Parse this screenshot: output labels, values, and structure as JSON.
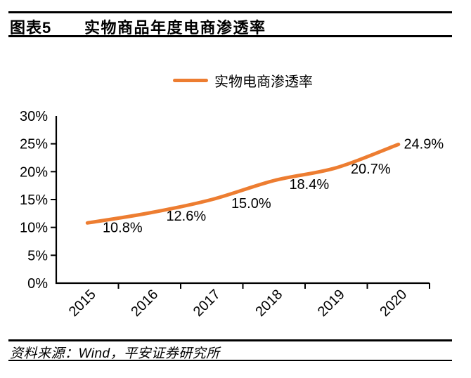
{
  "figure": {
    "label": "图表5",
    "title": "实物商品年度电商渗透率",
    "source": "资料来源：Wind，平安证券研究所"
  },
  "legend": {
    "series_label": "实物电商渗透率"
  },
  "colors": {
    "series_line": "#ED7D31",
    "axis": "#000000",
    "text": "#000000"
  },
  "chart_data": {
    "type": "line",
    "title": "实物商品年度电商渗透率",
    "categories": [
      "2015",
      "2016",
      "2017",
      "2018",
      "2019",
      "2020"
    ],
    "series": [
      {
        "name": "实物电商渗透率",
        "values": [
          10.8,
          12.6,
          15.0,
          18.4,
          20.7,
          24.9
        ]
      }
    ],
    "data_labels": [
      "10.8%",
      "12.6%",
      "15.0%",
      "18.4%",
      "20.7%",
      "24.9%"
    ],
    "y_tick_labels": [
      "30%",
      "25%",
      "20%",
      "15%",
      "10%",
      "5%",
      "0%"
    ],
    "ylim": [
      0,
      30
    ],
    "y_tick_step": 5,
    "xlabel": "",
    "ylabel": "",
    "grid": false,
    "smooth": true,
    "legend_position": "top-center",
    "line_color": "#ED7D31"
  }
}
